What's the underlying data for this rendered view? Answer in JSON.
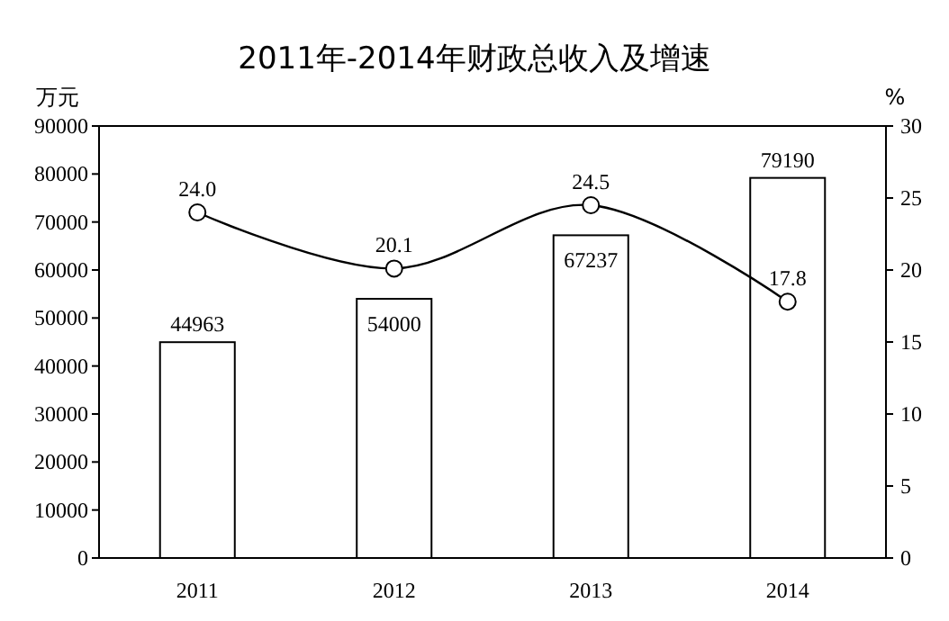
{
  "chart_data": {
    "type": "bar",
    "title": "2011年-2014年财政总收入及增速",
    "ylabel": "万元",
    "y2label": "%",
    "categories": [
      "2011",
      "2012",
      "2013",
      "2014"
    ],
    "series": [
      {
        "color": "#ffffff",
        "values": [
          44963,
          54000,
          67237,
          79190
        ],
        "value_labels": [
          "44963",
          "54000",
          "67237",
          "79190"
        ]
      },
      {
        "type": "line",
        "axis": "y2",
        "color": "#000000",
        "values": [
          24.0,
          20.1,
          24.5,
          17.8
        ],
        "value_labels": [
          "24.0",
          "20.1",
          "24.5",
          "17.8"
        ],
        "marker": "circle"
      }
    ],
    "ylim": [
      0,
      90000
    ],
    "yticks": [
      0,
      10000,
      20000,
      30000,
      40000,
      50000,
      60000,
      70000,
      80000,
      90000
    ],
    "y2lim": [
      0,
      30
    ],
    "y2ticks": [
      0,
      5,
      10,
      15,
      20,
      25,
      30
    ],
    "grid": false
  }
}
